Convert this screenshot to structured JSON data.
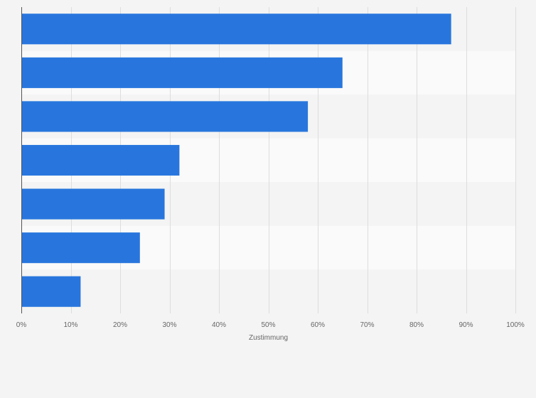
{
  "chart_data": {
    "type": "bar",
    "orientation": "horizontal",
    "title": "",
    "xlabel": "Zustimmung",
    "ylabel": "",
    "xlim": [
      0,
      100
    ],
    "grid": true,
    "categories": [
      "",
      "",
      "",
      "",
      "",
      "",
      ""
    ],
    "values": [
      87,
      65,
      58,
      32,
      29,
      24,
      12
    ],
    "bar_color": "#2876dd",
    "band_colors": [
      "#f4f4f4",
      "#fafafa"
    ],
    "x_ticks": [
      0,
      10,
      20,
      30,
      40,
      50,
      60,
      70,
      80,
      90,
      100
    ],
    "x_tick_labels": [
      "0%",
      "10%",
      "20%",
      "30%",
      "40%",
      "50%",
      "60%",
      "70%",
      "80%",
      "90%",
      "100%"
    ]
  }
}
